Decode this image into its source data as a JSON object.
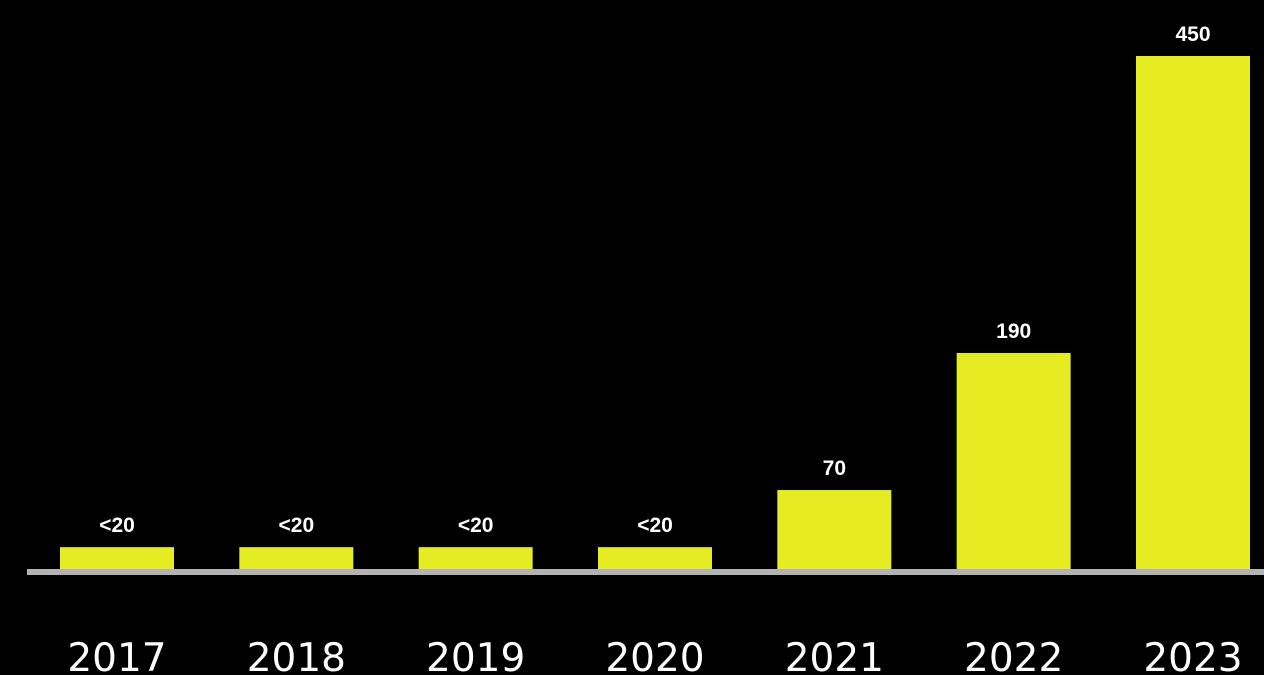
{
  "chart_data": {
    "type": "bar",
    "categories": [
      "2017",
      "2018",
      "2019",
      "2020",
      "2021",
      "2022",
      "2023"
    ],
    "values": [
      20,
      20,
      20,
      20,
      70,
      190,
      450
    ],
    "data_labels": [
      "<20",
      "<20",
      "<20",
      "<20",
      "70",
      "190",
      "450"
    ],
    "title": "",
    "xlabel": "",
    "ylabel": "",
    "ylim": [
      0,
      450
    ],
    "grid": false,
    "legend": "none",
    "colors": {
      "background": "#000000",
      "bar": "#e5ec21",
      "baseline": "#b3b3b3",
      "text": "#ffffff"
    }
  }
}
